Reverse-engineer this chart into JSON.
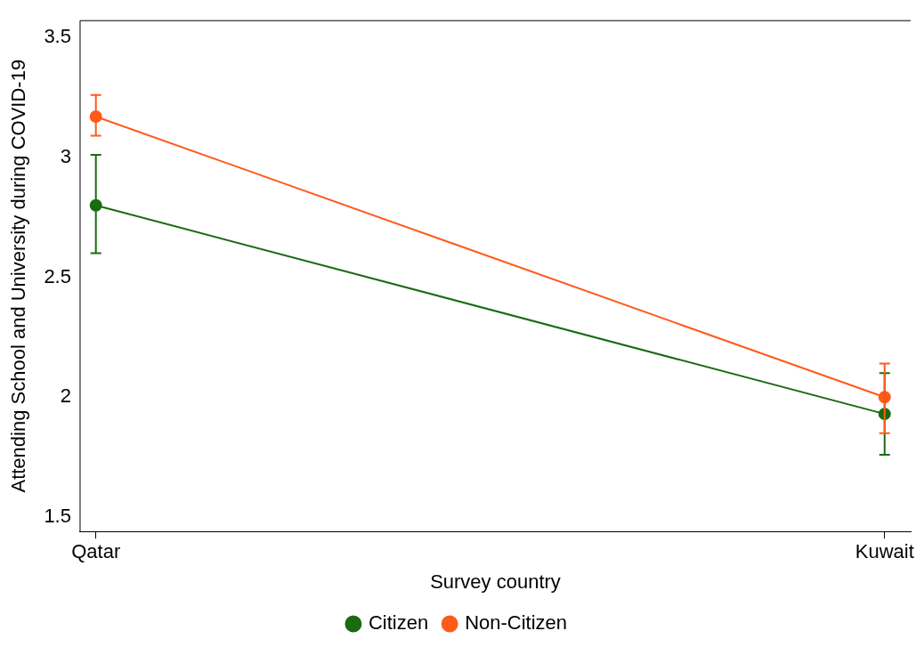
{
  "chart_data": {
    "type": "line",
    "xlabel": "Survey country",
    "ylabel": "Attending School and University during COVID-19",
    "categories": [
      "Qatar",
      "Kuwait"
    ],
    "series": [
      {
        "name": "Citizen",
        "color": "#1a6b12",
        "values": [
          2.8,
          1.93
        ],
        "errors": [
          [
            2.6,
            3.01
          ],
          [
            1.76,
            2.1
          ]
        ]
      },
      {
        "name": "Non-Citizen",
        "color": "#ff5a1a",
        "values": [
          3.17,
          2.0
        ],
        "errors": [
          [
            3.09,
            3.26
          ],
          [
            1.85,
            2.14
          ]
        ]
      }
    ],
    "ylim": [
      1.44,
      3.57
    ],
    "yticks": [
      1.5,
      2,
      2.5,
      3,
      3.5
    ],
    "grid": false,
    "legend": "bottom",
    "marker": "circle",
    "line_style": "solid"
  }
}
